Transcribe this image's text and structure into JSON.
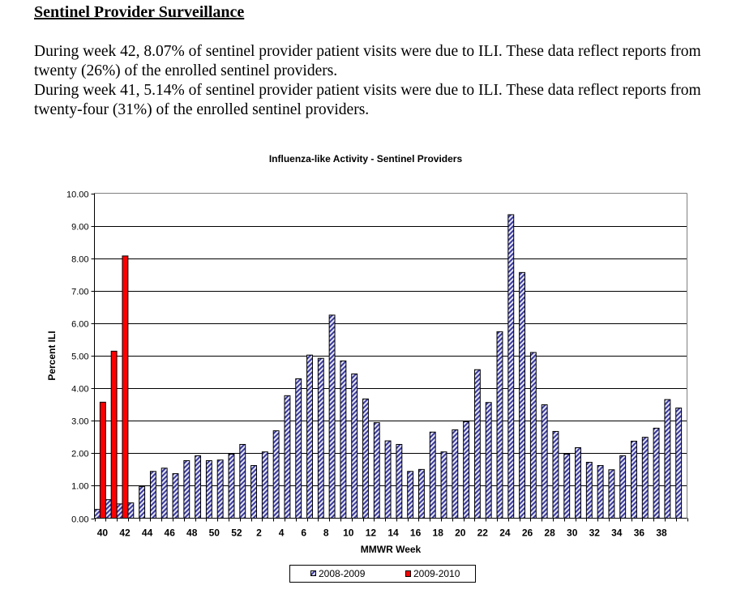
{
  "document": {
    "heading": "Sentinel Provider Surveillance",
    "paragraphs": [
      "During week 42, 8.07% of sentinel provider patient visits were due to ILI. These data reflect reports from twenty (26%) of the enrolled sentinel providers.",
      "During week 41, 5.14% of sentinel provider patient visits were due to ILI. These data reflect reports from twenty-four (31%) of the enrolled sentinel providers."
    ]
  },
  "chart_data": {
    "type": "bar",
    "title": "Influenza-like Activity - Sentinel Providers",
    "xlabel": "MMWR Week",
    "ylabel": "Percent ILI",
    "ylim": [
      0,
      10
    ],
    "yticks": [
      "0.00",
      "1.00",
      "2.00",
      "3.00",
      "4.00",
      "5.00",
      "6.00",
      "7.00",
      "8.00",
      "9.00",
      "10.00"
    ],
    "grid": true,
    "legend_position": "bottom-center",
    "categories": [
      "40",
      "41",
      "42",
      "43",
      "44",
      "45",
      "46",
      "47",
      "48",
      "49",
      "50",
      "51",
      "52",
      "1",
      "2",
      "3",
      "4",
      "5",
      "6",
      "7",
      "8",
      "9",
      "10",
      "11",
      "12",
      "13",
      "14",
      "15",
      "16",
      "17",
      "18",
      "19",
      "20",
      "21",
      "22",
      "23",
      "24",
      "25",
      "26",
      "27",
      "28",
      "29",
      "30",
      "31",
      "32",
      "33",
      "34",
      "35",
      "36",
      "37",
      "38",
      "39",
      "40"
    ],
    "xtick_labels": [
      "40",
      "",
      "42",
      "",
      "44",
      "",
      "46",
      "",
      "48",
      "",
      "50",
      "",
      "52",
      "",
      "2",
      "",
      "4",
      "",
      "6",
      "",
      "8",
      "",
      "10",
      "",
      "12",
      "",
      "14",
      "",
      "16",
      "",
      "18",
      "",
      "20",
      "",
      "22",
      "",
      "24",
      "",
      "26",
      "",
      "28",
      "",
      "30",
      "",
      "32",
      "",
      "34",
      "",
      "36",
      "",
      "38",
      "",
      ""
    ],
    "series": [
      {
        "name": "2008-2009",
        "pattern": "hatched",
        "color": "#3a3a9e",
        "values": [
          0.27,
          0.57,
          0.44,
          0.47,
          0.97,
          1.44,
          1.54,
          1.37,
          1.77,
          1.92,
          1.77,
          1.79,
          1.97,
          2.27,
          1.62,
          2.04,
          2.69,
          3.77,
          4.29,
          5.02,
          4.92,
          6.25,
          4.84,
          4.44,
          3.67,
          2.94,
          2.38,
          2.27,
          1.44,
          1.5,
          2.65,
          2.04,
          2.72,
          2.97,
          4.57,
          3.56,
          5.74,
          9.34,
          7.56,
          5.1,
          3.49,
          2.67,
          1.97,
          2.17,
          1.72,
          1.62,
          1.49,
          1.92,
          2.37,
          2.49,
          2.77,
          3.65,
          3.39
        ]
      },
      {
        "name": "2009-2010",
        "pattern": "solid",
        "color": "#ff0000",
        "values": [
          3.57,
          5.14,
          8.07,
          null,
          null,
          null,
          null,
          null,
          null,
          null,
          null,
          null,
          null,
          null,
          null,
          null,
          null,
          null,
          null,
          null,
          null,
          null,
          null,
          null,
          null,
          null,
          null,
          null,
          null,
          null,
          null,
          null,
          null,
          null,
          null,
          null,
          null,
          null,
          null,
          null,
          null,
          null,
          null,
          null,
          null,
          null,
          null,
          null,
          null,
          null,
          null,
          null,
          null
        ]
      }
    ]
  }
}
